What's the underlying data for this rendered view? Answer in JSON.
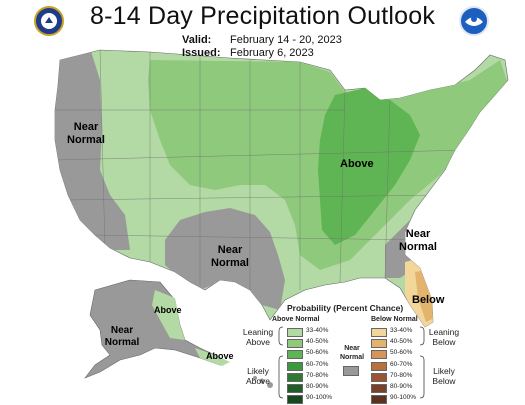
{
  "title": "8-14 Day Precipitation Outlook",
  "valid_label": "Valid:",
  "valid_value": "February 14 - 20, 2023",
  "issued_label": "Issued:",
  "issued_value": "February 6, 2023",
  "map_labels": {
    "near_normal_west_1": "Near",
    "near_normal_west_2": "Normal",
    "near_normal_sw_1": "Near",
    "near_normal_sw_2": "Normal",
    "near_normal_se_1": "Near",
    "near_normal_se_2": "Normal",
    "above_center": "Above",
    "below_florida": "Below",
    "near_normal_ak_1": "Near",
    "near_normal_ak_2": "Normal",
    "above_ak_1": "Above",
    "above_ak_2": "Above"
  },
  "legend": {
    "title": "Probability (Percent Chance)",
    "above_head": "Above Normal",
    "below_head": "Below Normal",
    "near_head_1": "Near",
    "near_head_2": "Normal",
    "leaning_above_1": "Leaning",
    "leaning_above_2": "Above",
    "likely_above_1": "Likely",
    "likely_above_2": "Above",
    "leaning_below_1": "Leaning",
    "leaning_below_2": "Below",
    "likely_below_1": "Likely",
    "likely_below_2": "Below",
    "above_ranges": [
      "33-40%",
      "40-50%",
      "50-60%",
      "60-70%",
      "70-80%",
      "80-90%",
      "90-100%"
    ],
    "below_ranges": [
      "33-40%",
      "40-50%",
      "50-60%",
      "60-70%",
      "70-80%",
      "80-90%",
      "90-100%"
    ],
    "above_colors": [
      "#b3d9a5",
      "#8ec97c",
      "#5fb553",
      "#3a9a3c",
      "#2d7a32",
      "#1f5e27",
      "#164a1e"
    ],
    "below_colors": [
      "#f3d699",
      "#e3b46d",
      "#d4945a",
      "#b8703f",
      "#9a5632",
      "#7b4128",
      "#5c3120"
    ],
    "near_color": "#999999"
  },
  "colors": {
    "near_normal_gray": "#999999",
    "above_33_40": "#b3d9a5",
    "above_40_50": "#8ec97c",
    "above_50_60": "#5fb553",
    "below_33_40": "#f3d699",
    "below_40_50": "#e3b46d"
  },
  "logos": {
    "left": "department-of-commerce-seal-icon",
    "right": "noaa-logo-icon"
  }
}
